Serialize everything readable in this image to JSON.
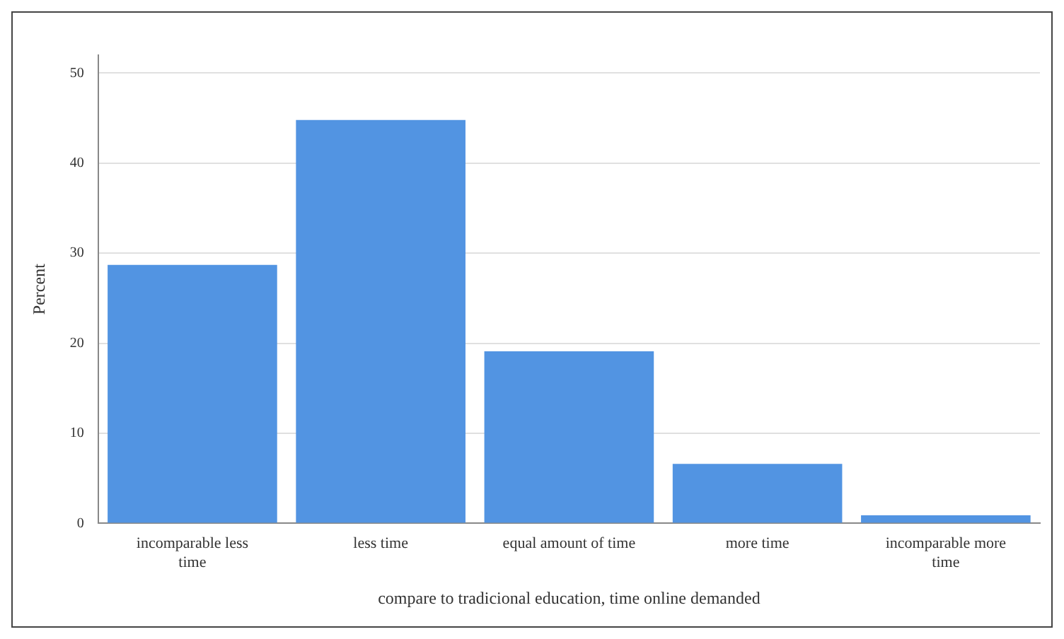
{
  "chart_data": {
    "type": "bar",
    "xlabel": "compare to tradicional education, time online demanded",
    "ylabel": "Percent",
    "categories": [
      "incomparable less time",
      "less time",
      "equal amount of time",
      "more time",
      "incomparable more time"
    ],
    "values": [
      28.7,
      44.8,
      19.1,
      6.6,
      0.9
    ],
    "color": "#5294e2",
    "ylim": [
      0,
      52
    ],
    "yticks": [
      0,
      10,
      20,
      30,
      40,
      50
    ],
    "grid": "y",
    "legend": false
  }
}
